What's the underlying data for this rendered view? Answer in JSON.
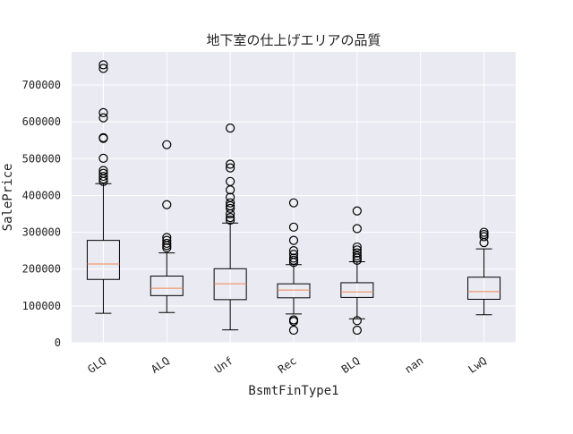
{
  "chart_data": {
    "type": "box",
    "title": "地下室の仕上げエリアの品質",
    "xlabel": "BsmtFinType1",
    "ylabel": "SalePrice",
    "ylim": [
      0,
      790000
    ],
    "yticks": [
      0,
      100000,
      200000,
      300000,
      400000,
      500000,
      600000,
      700000
    ],
    "grid": true,
    "categories": [
      "GLQ",
      "ALQ",
      "Unf",
      "Rec",
      "BLQ",
      "nan",
      "LwQ"
    ],
    "boxes": [
      {
        "category": "GLQ",
        "whisker_low": 80000,
        "q1": 172000,
        "median": 214000,
        "q3": 278000,
        "whisker_high": 432000,
        "fliers": [
          438000,
          445000,
          452000,
          460000,
          468000,
          501000,
          555000,
          557000,
          611000,
          625000,
          745000,
          755000
        ]
      },
      {
        "category": "ALQ",
        "whisker_low": 82000,
        "q1": 128000,
        "median": 148000,
        "q3": 181000,
        "whisker_high": 244000,
        "fliers": [
          258000,
          264000,
          270000,
          278000,
          286000,
          375000,
          538000
        ]
      },
      {
        "category": "Unf",
        "whisker_low": 35000,
        "q1": 117000,
        "median": 160000,
        "q3": 201000,
        "whisker_high": 325000,
        "fliers": [
          333000,
          340000,
          350000,
          365000,
          372000,
          380000,
          395000,
          415000,
          438000,
          475000,
          485000,
          583000
        ]
      },
      {
        "category": "Rec",
        "whisker_low": 78000,
        "q1": 122000,
        "median": 143000,
        "q3": 160000,
        "whisker_high": 212000,
        "fliers": [
          34000,
          58000,
          62000,
          218000,
          224000,
          230000,
          240000,
          250000,
          278000,
          314000,
          380000
        ]
      },
      {
        "category": "BLQ",
        "whisker_low": 65000,
        "q1": 123000,
        "median": 138000,
        "q3": 163000,
        "whisker_high": 220000,
        "fliers": [
          34000,
          60000,
          224000,
          230000,
          236000,
          244000,
          252000,
          260000,
          310000,
          358000
        ]
      },
      {
        "category": "nan",
        "whisker_low": null,
        "q1": null,
        "median": null,
        "q3": null,
        "whisker_high": null,
        "fliers": []
      },
      {
        "category": "LwQ",
        "whisker_low": 76000,
        "q1": 118000,
        "median": 139000,
        "q3": 178000,
        "whisker_high": 255000,
        "fliers": [
          272000,
          288000,
          294000,
          300000
        ]
      }
    ],
    "colors": {
      "plot_background": "#EAEAF2",
      "grid": "#FFFFFF",
      "box_line": "#000000",
      "median": "#F0874F"
    }
  }
}
